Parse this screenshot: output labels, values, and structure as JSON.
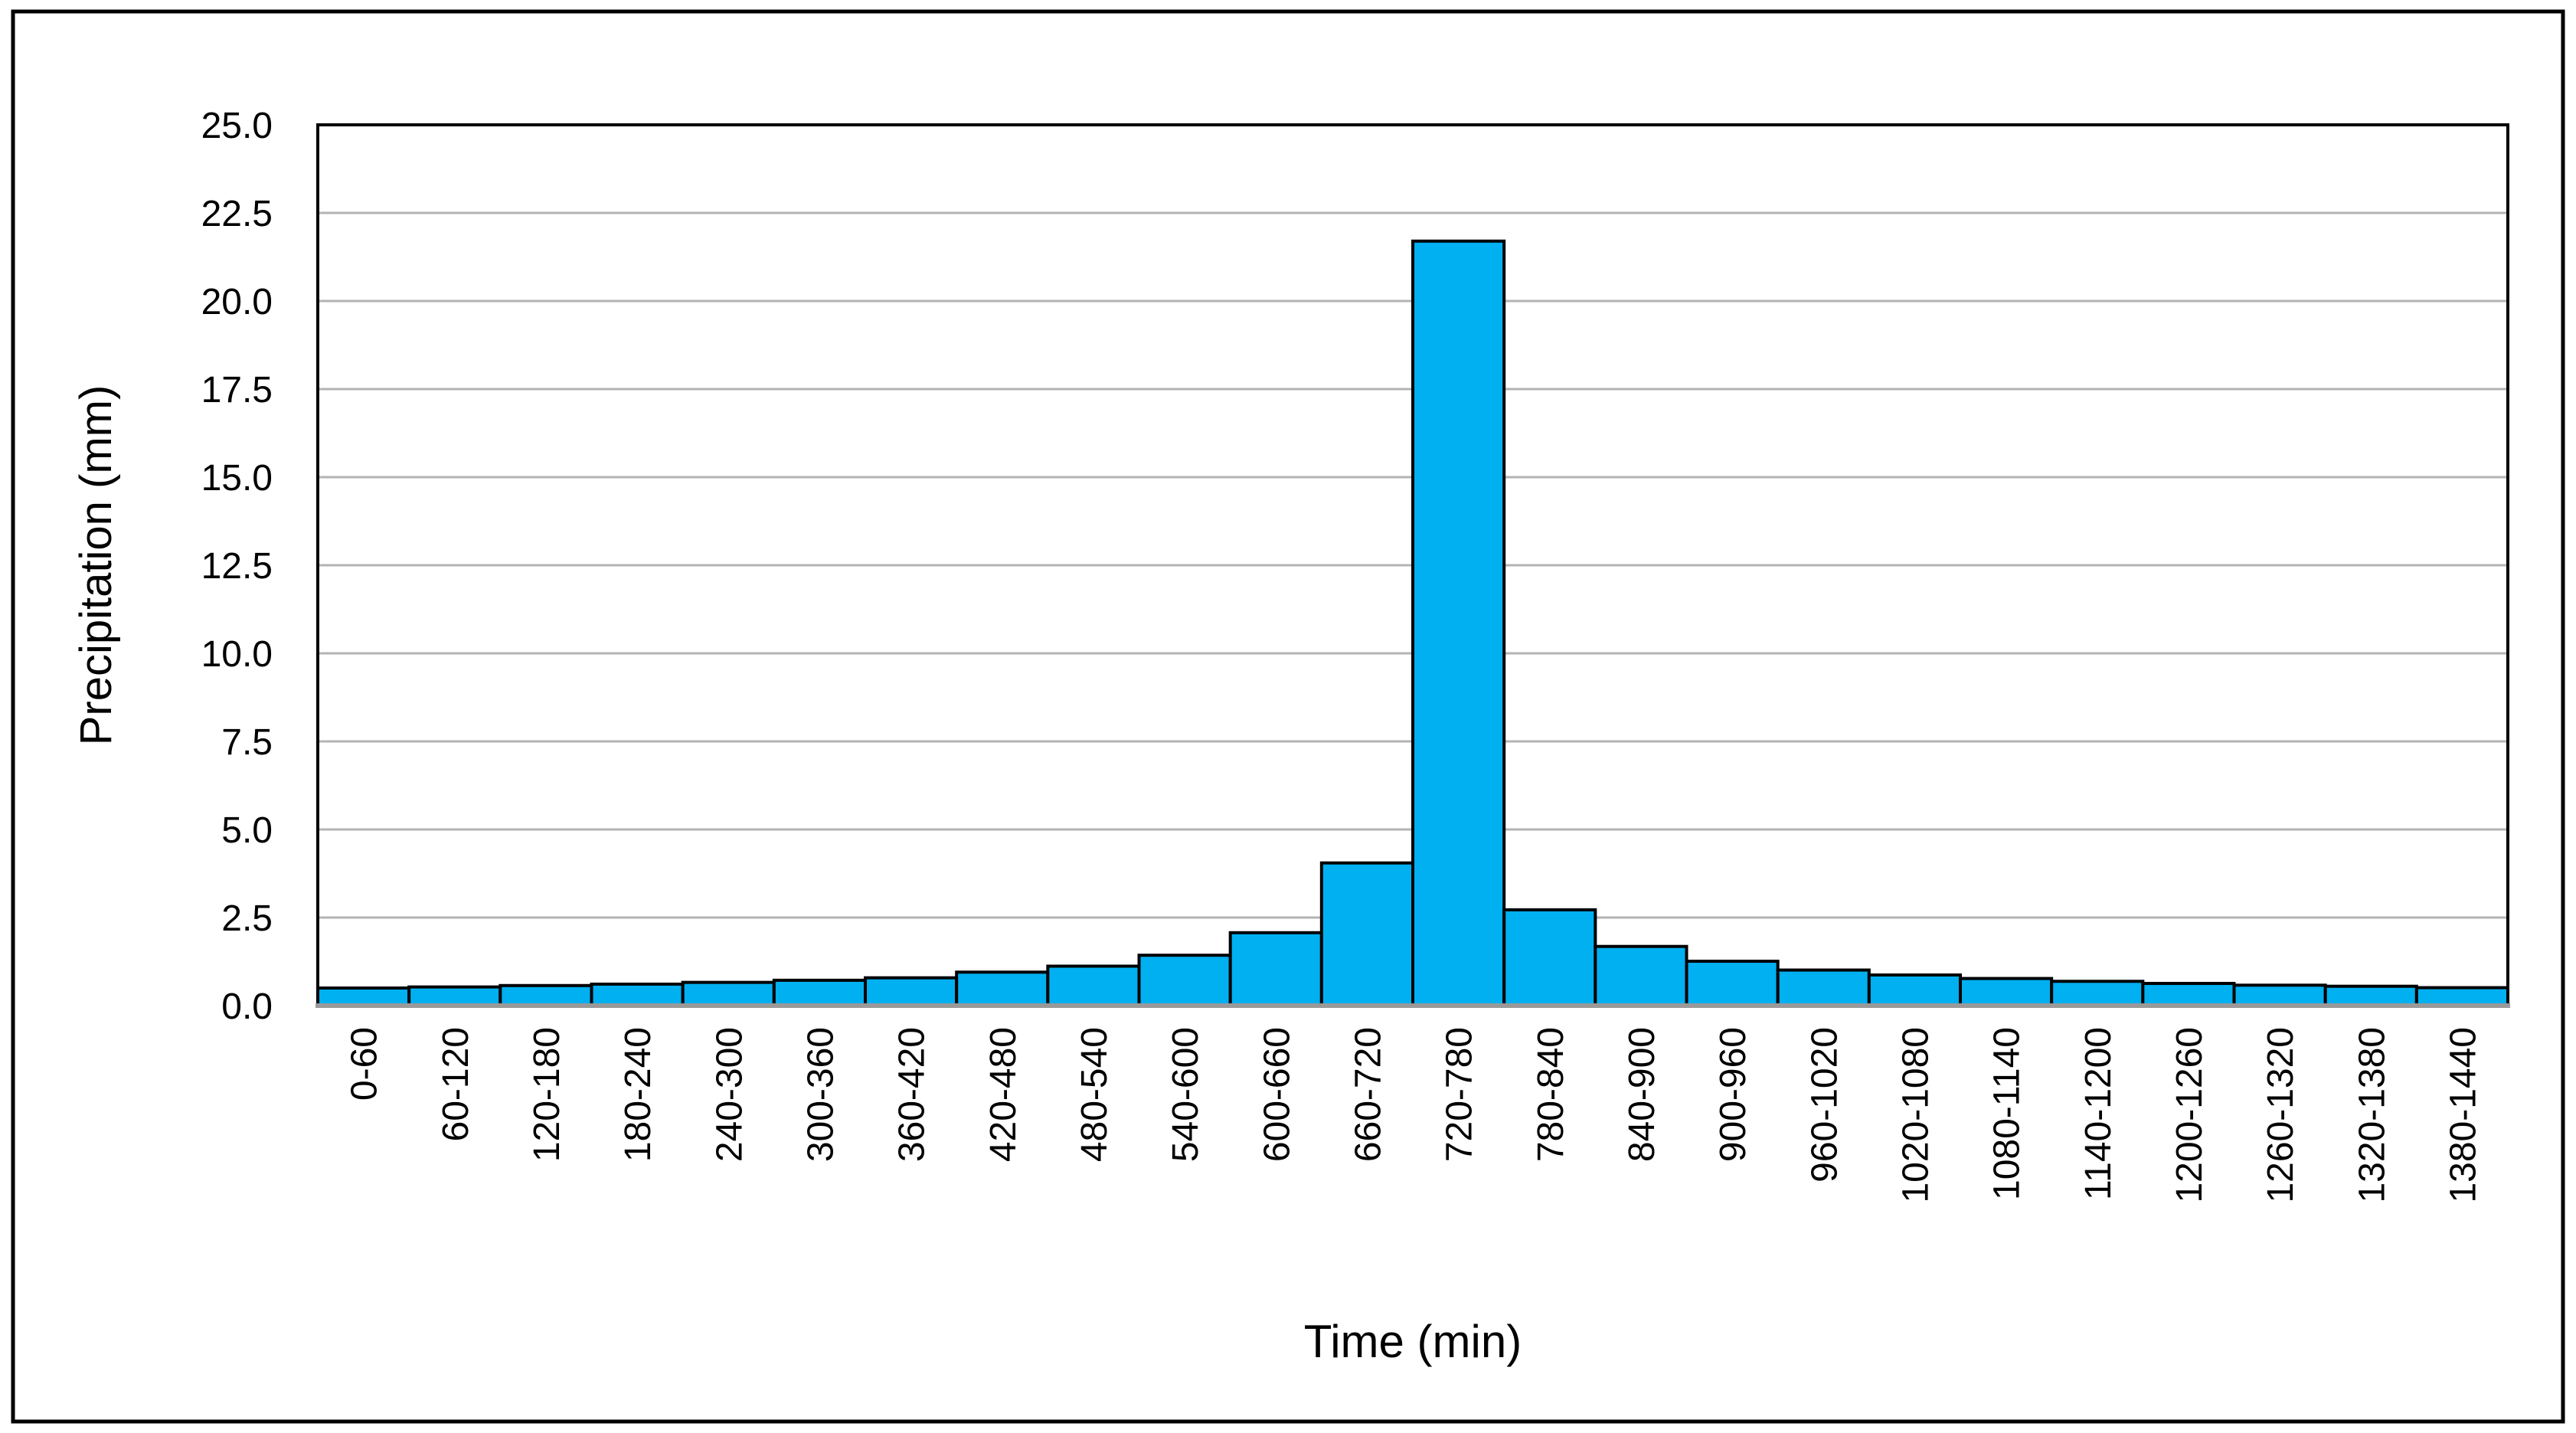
{
  "figure": {
    "background": "#FFFFFF",
    "border_color": "#000000"
  },
  "chart_data": {
    "type": "bar",
    "title": "",
    "xlabel": "Time (min)",
    "ylabel": "Precipitation (mm)",
    "categories": [
      "0-60",
      "60-120",
      "120-180",
      "180-240",
      "240-300",
      "300-360",
      "360-420",
      "420-480",
      "480-540",
      "540-600",
      "600-660",
      "660-720",
      "720-780",
      "780-840",
      "840-900",
      "900-960",
      "960-1020",
      "1020-1080",
      "1080-1140",
      "1140-1200",
      "1200-1260",
      "1260-1320",
      "1320-1380",
      "1380-1440"
    ],
    "values": [
      0.5,
      0.53,
      0.57,
      0.61,
      0.66,
      0.72,
      0.79,
      0.95,
      1.12,
      1.43,
      2.07,
      4.05,
      21.7,
      2.72,
      1.68,
      1.26,
      1.01,
      0.87,
      0.77,
      0.69,
      0.63,
      0.58,
      0.55,
      0.51
    ],
    "ylim": [
      0,
      25
    ],
    "ytick_step": 2.5,
    "ytick_labels": [
      "0.0",
      "2.5",
      "5.0",
      "7.5",
      "10.0",
      "12.5",
      "15.0",
      "17.5",
      "20.0",
      "22.5",
      "25.0"
    ],
    "grid": true,
    "legend": "none",
    "bar_fill": "#00B0F0",
    "bar_stroke": "#000000",
    "gridline_color": "#B3B3B3",
    "axis_line_color": "#999999",
    "plot_border_color": "#000000"
  }
}
